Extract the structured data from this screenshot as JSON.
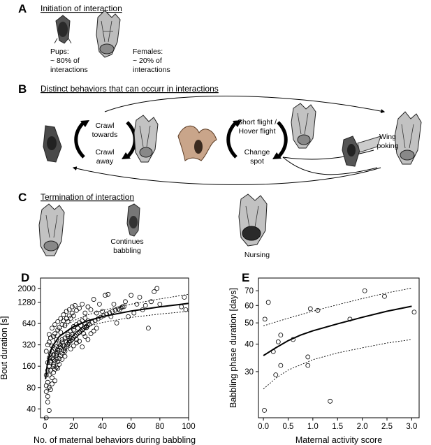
{
  "panels": {
    "A": {
      "letter": "A",
      "heading": "Initiation of interaction",
      "pups_label": "Pups:",
      "pups_value": "~ 80% of",
      "pups_value2": "interactions",
      "females_label": "Females:",
      "females_value": "~ 20% of",
      "females_value2": "interactions"
    },
    "B": {
      "letter": "B",
      "heading": "Distinct behaviors that can occurr in interactions",
      "crawl_towards": [
        "Crawl",
        "towards"
      ],
      "crawl_away": [
        "Crawl",
        "away"
      ],
      "short_flight": [
        "Short flight /",
        "Hover flight"
      ],
      "change_spot": [
        "Change",
        "spot"
      ],
      "wing_poking": [
        "Wing",
        "poking"
      ]
    },
    "C": {
      "letter": "C",
      "heading": "Termination of interaction",
      "continues": [
        "Continues",
        "babbling"
      ],
      "nursing": "Nursing"
    },
    "D": {
      "letter": "D"
    },
    "E": {
      "letter": "E"
    }
  },
  "chart_data": [
    {
      "id": "D",
      "type": "scatter",
      "xlabel": "No. of maternal behaviors during babbling",
      "ylabel": "Bout duration [s]",
      "xlim": [
        -3,
        100
      ],
      "ylim_log2": [
        30,
        2800
      ],
      "y_scale": "log2",
      "xticks": [
        0,
        20,
        40,
        60,
        80,
        100
      ],
      "yticks": [
        40,
        80,
        160,
        320,
        640,
        1280,
        2000
      ],
      "ytick_labels": [
        "40",
        "80",
        "160",
        "320",
        "640",
        "1280",
        "2000"
      ],
      "fit": "power",
      "points": [
        [
          1,
          30
        ],
        [
          2,
          50
        ],
        [
          3,
          38
        ],
        [
          1,
          85
        ],
        [
          2,
          95
        ],
        [
          3,
          120
        ],
        [
          4,
          140
        ],
        [
          5,
          110
        ],
        [
          6,
          160
        ],
        [
          7,
          100
        ],
        [
          8,
          200
        ],
        [
          9,
          150
        ],
        [
          10,
          170
        ],
        [
          2,
          180
        ],
        [
          3,
          210
        ],
        [
          4,
          240
        ],
        [
          5,
          260
        ],
        [
          6,
          230
        ],
        [
          7,
          280
        ],
        [
          8,
          300
        ],
        [
          9,
          250
        ],
        [
          10,
          330
        ],
        [
          11,
          290
        ],
        [
          12,
          380
        ],
        [
          13,
          310
        ],
        [
          14,
          260
        ],
        [
          15,
          350
        ],
        [
          16,
          420
        ],
        [
          17,
          370
        ],
        [
          18,
          400
        ],
        [
          19,
          450
        ],
        [
          20,
          520
        ],
        [
          21,
          430
        ],
        [
          22,
          380
        ],
        [
          23,
          550
        ],
        [
          24,
          480
        ],
        [
          25,
          600
        ],
        [
          26,
          520
        ],
        [
          27,
          460
        ],
        [
          28,
          640
        ],
        [
          29,
          560
        ],
        [
          30,
          700
        ],
        [
          1,
          260
        ],
        [
          2,
          320
        ],
        [
          3,
          350
        ],
        [
          4,
          400
        ],
        [
          5,
          310
        ],
        [
          6,
          420
        ],
        [
          7,
          460
        ],
        [
          8,
          380
        ],
        [
          9,
          520
        ],
        [
          10,
          560
        ],
        [
          11,
          480
        ],
        [
          12,
          620
        ],
        [
          13,
          700
        ],
        [
          14,
          600
        ],
        [
          15,
          750
        ],
        [
          16,
          680
        ],
        [
          17,
          820
        ],
        [
          18,
          760
        ],
        [
          19,
          900
        ],
        [
          20,
          820
        ],
        [
          22,
          980
        ],
        [
          24,
          1050
        ],
        [
          26,
          1200
        ],
        [
          28,
          900
        ],
        [
          30,
          1100
        ],
        [
          32,
          1000
        ],
        [
          34,
          1400
        ],
        [
          36,
          900
        ],
        [
          38,
          1200
        ],
        [
          40,
          950
        ],
        [
          42,
          1600
        ],
        [
          44,
          1650
        ],
        [
          46,
          800
        ],
        [
          48,
          1200
        ],
        [
          50,
          650
        ],
        [
          52,
          1000
        ],
        [
          54,
          1100
        ],
        [
          56,
          1300
        ],
        [
          58,
          800
        ],
        [
          60,
          1600
        ],
        [
          62,
          900
        ],
        [
          64,
          1200
        ],
        [
          66,
          1500
        ],
        [
          68,
          1000
        ],
        [
          70,
          1150
        ],
        [
          72,
          550
        ],
        [
          74,
          1300
        ],
        [
          76,
          1800
        ],
        [
          78,
          2000
        ],
        [
          80,
          1200
        ],
        [
          95,
          1100
        ],
        [
          97,
          1500
        ],
        [
          98,
          1000
        ],
        [
          3,
          450
        ],
        [
          5,
          550
        ],
        [
          7,
          620
        ],
        [
          9,
          680
        ],
        [
          11,
          750
        ],
        [
          13,
          850
        ],
        [
          15,
          950
        ],
        [
          17,
          1000
        ],
        [
          19,
          1100
        ],
        [
          21,
          1150
        ],
        [
          4,
          180
        ],
        [
          6,
          200
        ],
        [
          8,
          230
        ],
        [
          10,
          270
        ],
        [
          12,
          200
        ],
        [
          14,
          220
        ],
        [
          16,
          330
        ],
        [
          18,
          280
        ],
        [
          20,
          310
        ],
        [
          22,
          340
        ],
        [
          24,
          360
        ],
        [
          26,
          300
        ],
        [
          28,
          420
        ],
        [
          30,
          380
        ],
        [
          32,
          460
        ],
        [
          34,
          500
        ],
        [
          36,
          550
        ],
        [
          2,
          140
        ],
        [
          3,
          160
        ],
        [
          4,
          190
        ],
        [
          5,
          210
        ],
        [
          6,
          170
        ],
        [
          7,
          190
        ],
        [
          8,
          240
        ],
        [
          9,
          270
        ],
        [
          10,
          300
        ],
        [
          11,
          320
        ],
        [
          12,
          350
        ],
        [
          14,
          400
        ],
        [
          16,
          450
        ],
        [
          18,
          500
        ],
        [
          20,
          580
        ],
        [
          22,
          620
        ],
        [
          24,
          660
        ],
        [
          26,
          700
        ],
        [
          28,
          760
        ],
        [
          1,
          120
        ],
        [
          1,
          70
        ],
        [
          2,
          60
        ],
        [
          3,
          80
        ],
        [
          4,
          75
        ],
        [
          5,
          90
        ],
        [
          6,
          130
        ],
        [
          7,
          145
        ],
        [
          8,
          155
        ],
        [
          9,
          185
        ],
        [
          10,
          205
        ],
        [
          11,
          225
        ],
        [
          12,
          245
        ],
        [
          13,
          265
        ],
        [
          14,
          285
        ],
        [
          15,
          305
        ],
        [
          16,
          325
        ],
        [
          17,
          345
        ],
        [
          18,
          365
        ],
        [
          19,
          385
        ],
        [
          20,
          405
        ],
        [
          21,
          425
        ],
        [
          22,
          445
        ],
        [
          23,
          465
        ],
        [
          24,
          485
        ],
        [
          25,
          505
        ],
        [
          26,
          525
        ],
        [
          27,
          545
        ],
        [
          28,
          565
        ],
        [
          29,
          585
        ],
        [
          30,
          605
        ],
        [
          31,
          625
        ],
        [
          33,
          665
        ],
        [
          35,
          705
        ],
        [
          37,
          745
        ],
        [
          39,
          785
        ],
        [
          41,
          825
        ],
        [
          43,
          865
        ],
        [
          45,
          905
        ],
        [
          47,
          945
        ],
        [
          49,
          985
        ],
        [
          51,
          1025
        ],
        [
          53,
          1065
        ],
        [
          55,
          1105
        ]
      ],
      "fit_curve": [
        [
          0.5,
          105
        ],
        [
          2,
          190
        ],
        [
          5,
          300
        ],
        [
          10,
          420
        ],
        [
          20,
          580
        ],
        [
          30,
          700
        ],
        [
          40,
          800
        ],
        [
          60,
          960
        ],
        [
          80,
          1100
        ],
        [
          100,
          1230
        ]
      ],
      "ci_upper": [
        [
          5,
          380
        ],
        [
          10,
          520
        ],
        [
          20,
          700
        ],
        [
          30,
          850
        ],
        [
          40,
          980
        ],
        [
          60,
          1200
        ],
        [
          80,
          1420
        ],
        [
          100,
          1650
        ]
      ],
      "ci_lower": [
        [
          5,
          230
        ],
        [
          10,
          330
        ],
        [
          20,
          470
        ],
        [
          30,
          580
        ],
        [
          40,
          660
        ],
        [
          60,
          780
        ],
        [
          80,
          870
        ],
        [
          100,
          950
        ]
      ]
    },
    {
      "id": "E",
      "type": "scatter",
      "xlabel": "Maternal activity score",
      "ylabel": "Babbling phase duration [days]",
      "xlim": [
        -0.1,
        3.15
      ],
      "ylim_log2": [
        18.5,
        80
      ],
      "y_scale": "log2",
      "xticks": [
        0.0,
        0.5,
        1.0,
        1.5,
        2.0,
        2.5,
        3.0
      ],
      "xtick_labels": [
        "0.0",
        "0.5",
        "1.0",
        "1.5",
        "2.0",
        "2.5",
        "3.0"
      ],
      "yticks": [
        30,
        40,
        50,
        60,
        70
      ],
      "ytick_labels": [
        "30",
        "40",
        "50",
        "60",
        "70"
      ],
      "points": [
        [
          0.03,
          52
        ],
        [
          0.1,
          62
        ],
        [
          0.2,
          37
        ],
        [
          0.25,
          29
        ],
        [
          0.3,
          41
        ],
        [
          0.35,
          32
        ],
        [
          0.35,
          44
        ],
        [
          0.6,
          42
        ],
        [
          0.9,
          35
        ],
        [
          0.9,
          32
        ],
        [
          0.95,
          58
        ],
        [
          1.1,
          57
        ],
        [
          1.35,
          22
        ],
        [
          1.75,
          52
        ],
        [
          2.05,
          70
        ],
        [
          2.45,
          66
        ],
        [
          3.05,
          56
        ],
        [
          0.02,
          20
        ]
      ],
      "fit_curve": [
        [
          0.0,
          35.5
        ],
        [
          0.25,
          38.5
        ],
        [
          0.5,
          41.5
        ],
        [
          0.75,
          44.0
        ],
        [
          1.0,
          46.0
        ],
        [
          1.5,
          49.5
        ],
        [
          2.0,
          53.0
        ],
        [
          2.5,
          56.5
        ],
        [
          3.0,
          59.5
        ]
      ],
      "ci_upper": [
        [
          0.0,
          48.5
        ],
        [
          0.5,
          52.5
        ],
        [
          1.0,
          56.5
        ],
        [
          1.5,
          60.5
        ],
        [
          2.0,
          64.5
        ],
        [
          2.5,
          68.5
        ],
        [
          3.0,
          72.0
        ]
      ],
      "ci_lower": [
        [
          0.0,
          25
        ],
        [
          0.25,
          28
        ],
        [
          0.5,
          30.5
        ],
        [
          1.0,
          34
        ],
        [
          1.5,
          36.5
        ],
        [
          2.0,
          38.5
        ],
        [
          2.5,
          40.5
        ],
        [
          3.0,
          42
        ]
      ]
    }
  ]
}
